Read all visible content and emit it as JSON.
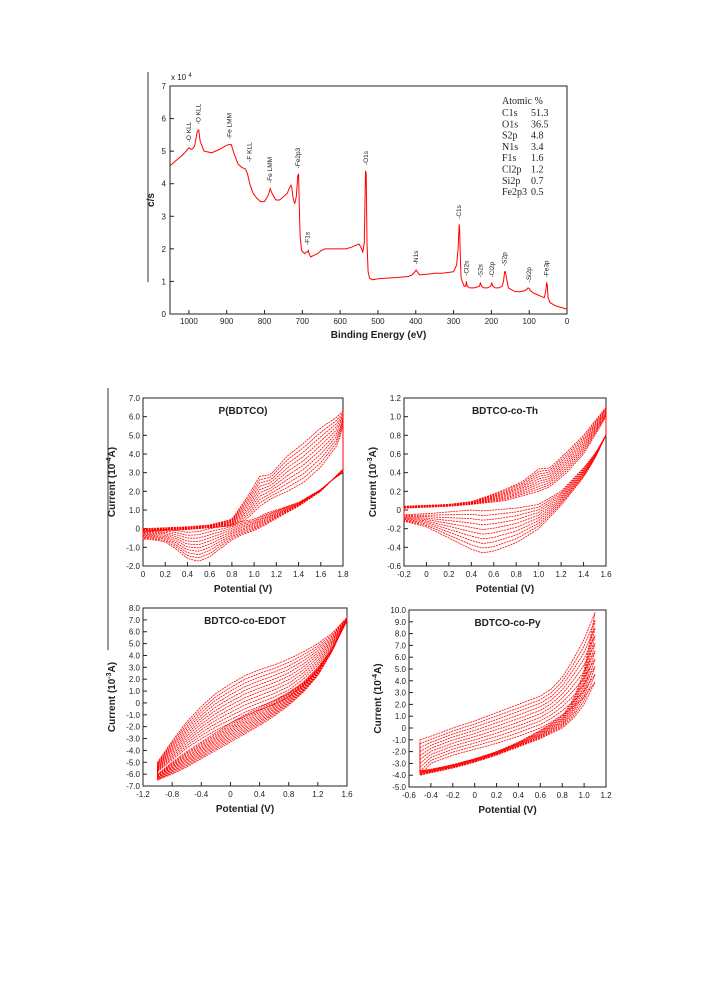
{
  "accent_color": "#ff0000",
  "chart_data": [
    {
      "id": "xps",
      "type": "line",
      "xlabel": "Binding Energy (eV)",
      "ylabel": "c/s",
      "y_multiplier": "x 10",
      "y_multiplier_exp": "4",
      "xlim": [
        1050,
        0
      ],
      "ylim": [
        0,
        7
      ],
      "x_ticks": [
        1000,
        900,
        800,
        700,
        600,
        500,
        400,
        300,
        200,
        100,
        0
      ],
      "y_ticks": [
        0,
        1,
        2,
        3,
        4,
        5,
        6,
        7
      ],
      "grid": false,
      "series": [
        {
          "x": [
            1050,
            1030,
            1015,
            1000,
            992,
            985,
            978,
            974,
            970,
            960,
            940,
            920,
            905,
            895,
            888,
            880,
            870,
            860,
            850,
            845,
            838,
            830,
            820,
            810,
            800,
            790,
            785,
            780,
            770,
            760,
            750,
            740,
            735,
            730,
            728,
            725,
            722,
            720,
            716,
            712,
            710,
            708,
            706,
            702,
            698,
            694,
            690,
            686,
            684,
            682,
            678,
            670,
            660,
            650,
            640,
            620,
            600,
            585,
            570,
            560,
            550,
            545,
            540,
            536,
            533,
            531,
            529,
            526,
            522,
            515,
            500,
            480,
            450,
            420,
            410,
            402,
            399,
            396,
            390,
            370,
            350,
            330,
            310,
            300,
            292,
            288,
            286,
            285,
            284,
            282,
            280,
            277,
            272,
            268,
            266,
            264,
            258,
            245,
            232,
            229,
            226,
            220,
            210,
            202,
            199,
            196,
            190,
            180,
            172,
            168,
            165,
            163,
            160,
            155,
            140,
            125,
            110,
            103,
            100,
            97,
            90,
            80,
            70,
            60,
            56,
            54,
            52,
            50,
            45,
            30,
            15,
            0
          ],
          "y": [
            4.55,
            4.75,
            4.9,
            5.1,
            5.05,
            5.15,
            5.6,
            5.65,
            5.3,
            5.0,
            4.95,
            5.05,
            5.15,
            5.2,
            5.2,
            4.9,
            4.6,
            4.5,
            4.45,
            4.3,
            3.95,
            3.7,
            3.55,
            3.45,
            3.45,
            3.65,
            3.85,
            3.7,
            3.5,
            3.5,
            3.6,
            3.7,
            3.85,
            3.95,
            3.9,
            3.6,
            3.45,
            3.4,
            3.6,
            4.25,
            4.3,
            3.3,
            2.4,
            1.95,
            1.9,
            1.85,
            1.9,
            1.9,
            1.95,
            1.85,
            1.75,
            1.8,
            1.85,
            1.95,
            2.0,
            2.0,
            2.0,
            2.0,
            2.05,
            2.1,
            2.15,
            2.05,
            1.9,
            2.2,
            4.4,
            4.3,
            2.2,
            1.3,
            1.1,
            1.05,
            1.08,
            1.1,
            1.12,
            1.15,
            1.2,
            1.3,
            1.35,
            1.3,
            1.2,
            1.22,
            1.25,
            1.25,
            1.28,
            1.3,
            1.5,
            2.0,
            2.55,
            2.75,
            2.6,
            1.7,
            1.1,
            1.0,
            0.85,
            0.85,
            1.0,
            0.85,
            0.8,
            0.8,
            0.85,
            0.95,
            0.85,
            0.8,
            0.8,
            0.85,
            0.95,
            0.85,
            0.8,
            0.8,
            0.85,
            1.0,
            1.3,
            1.3,
            1.1,
            0.8,
            0.7,
            0.68,
            0.72,
            0.8,
            0.78,
            0.72,
            0.65,
            0.6,
            0.55,
            0.5,
            0.7,
            0.95,
            0.9,
            0.5,
            0.35,
            0.25,
            0.2,
            0.15
          ]
        }
      ],
      "annotations": [
        {
          "label": "O KLL",
          "x": 1000,
          "y": 5.15
        },
        {
          "label": "O KLL",
          "x": 975,
          "y": 5.7
        },
        {
          "label": "Fe LMM",
          "x": 892,
          "y": 5.25
        },
        {
          "label": "F KLL",
          "x": 840,
          "y": 4.55
        },
        {
          "label": "Fe LMM",
          "x": 785,
          "y": 3.9
        },
        {
          "label": "Fe2p3",
          "x": 712,
          "y": 4.35
        },
        {
          "label": "F1s",
          "x": 686,
          "y": 2.0
        },
        {
          "label": "O1s",
          "x": 531,
          "y": 4.45
        },
        {
          "label": "N1s",
          "x": 399,
          "y": 1.4
        },
        {
          "label": "C1s",
          "x": 285,
          "y": 2.8
        },
        {
          "label": "Cl2s",
          "x": 266,
          "y": 1.05
        },
        {
          "label": "S2s",
          "x": 229,
          "y": 1.0
        },
        {
          "label": "Cl2p",
          "x": 199,
          "y": 1.0
        },
        {
          "label": "S2p",
          "x": 165,
          "y": 1.35
        },
        {
          "label": "Si2p",
          "x": 100,
          "y": 0.85
        },
        {
          "label": "Fe3p",
          "x": 54,
          "y": 1.0
        }
      ],
      "composition": {
        "title": "Atomic %",
        "rows": [
          {
            "element": "C1s",
            "value": "51.3"
          },
          {
            "element": "O1s",
            "value": "36.5"
          },
          {
            "element": "S2p",
            "value": "4.8"
          },
          {
            "element": "N1s",
            "value": "3.4"
          },
          {
            "element": "F1s",
            "value": "1.6"
          },
          {
            "element": "Cl2p",
            "value": "1.2"
          },
          {
            "element": "Si2p",
            "value": "0.7"
          },
          {
            "element": "Fe2p3",
            "value": "0.5"
          }
        ]
      }
    },
    {
      "id": "cv1",
      "type": "line",
      "title": "P(BDTCO)",
      "xlabel": "Potential (V)",
      "ylabel": "Current (10",
      "ylabel_exp": "-4",
      "ylabel_tail": "A)",
      "xlim": [
        0,
        1.8
      ],
      "ylim": [
        -2.0,
        7.0
      ],
      "x_ticks": [
        "0",
        "0.2",
        "0.4",
        "0.6",
        "0.8",
        "1.0",
        "1.2",
        "1.4",
        "1.6",
        "1.8"
      ],
      "x_tick_values": [
        0,
        0.2,
        0.4,
        0.6,
        0.8,
        1.0,
        1.2,
        1.4,
        1.6,
        1.8
      ],
      "y_ticks": [
        "-2.0",
        "-1.0",
        "0",
        "1.0",
        "2.0",
        "3.0",
        "4.0",
        "5.0",
        "6.0",
        "7.0"
      ],
      "y_tick_values": [
        -2,
        -1,
        0,
        1,
        2,
        3,
        4,
        5,
        6,
        7
      ],
      "grid": false,
      "cycles": 10,
      "anodic": {
        "x": [
          0,
          0.2,
          0.4,
          0.6,
          0.8,
          0.95,
          1.05,
          1.15,
          1.3,
          1.45,
          1.6,
          1.75,
          1.8
        ],
        "y_first": [
          -0.15,
          -0.1,
          -0.05,
          0.05,
          0.15,
          0.6,
          1.2,
          1.6,
          2.0,
          2.5,
          3.3,
          4.5,
          5.5
        ],
        "y_last": [
          0.0,
          0.05,
          0.1,
          0.2,
          0.5,
          1.8,
          2.8,
          2.9,
          3.9,
          4.6,
          5.4,
          6.0,
          6.3
        ]
      },
      "cathodic": {
        "x": [
          1.8,
          1.7,
          1.6,
          1.4,
          1.2,
          1.1,
          1.0,
          0.9,
          0.8,
          0.6,
          0.5,
          0.4,
          0.3,
          0.2,
          0.1,
          0
        ],
        "y_first": [
          3.0,
          2.6,
          2.1,
          1.4,
          1.0,
          0.8,
          0.5,
          0.4,
          0.2,
          0.0,
          -0.15,
          -0.2,
          -0.1,
          -0.05,
          -0.1,
          -0.15
        ],
        "y_last": [
          3.2,
          2.6,
          2.0,
          1.2,
          0.55,
          0.2,
          -0.1,
          -0.3,
          -0.6,
          -1.5,
          -1.75,
          -1.6,
          -1.1,
          -0.7,
          -0.6,
          -0.55
        ]
      }
    },
    {
      "id": "cv2",
      "type": "line",
      "title": "BDTCO-co-Th",
      "xlabel": "Potential (V)",
      "ylabel": "Current (10",
      "ylabel_exp": "-3",
      "ylabel_tail": "A)",
      "xlim": [
        -0.2,
        1.6
      ],
      "ylim": [
        -0.6,
        1.2
      ],
      "x_ticks": [
        "-0.2",
        "0",
        "0.2",
        "0.4",
        "0.6",
        "0.8",
        "1.0",
        "1.2",
        "1.4",
        "1.6"
      ],
      "x_tick_values": [
        -0.2,
        0,
        0.2,
        0.4,
        0.6,
        0.8,
        1.0,
        1.2,
        1.4,
        1.6
      ],
      "y_ticks": [
        "-0.6",
        "-0.4",
        "-0.2",
        "0",
        "0.2",
        "0.4",
        "0.6",
        "0.8",
        "1.0",
        "1.2"
      ],
      "y_tick_values": [
        -0.6,
        -0.4,
        -0.2,
        0,
        0.2,
        0.4,
        0.6,
        0.8,
        1.0,
        1.2
      ],
      "grid": false,
      "cycles": 10,
      "anodic": {
        "x": [
          -0.2,
          0,
          0.2,
          0.4,
          0.55,
          0.7,
          0.85,
          1.0,
          1.1,
          1.25,
          1.4,
          1.5,
          1.6
        ],
        "y_first": [
          0.02,
          0.03,
          0.04,
          0.06,
          0.08,
          0.1,
          0.15,
          0.2,
          0.25,
          0.4,
          0.6,
          0.8,
          1.0
        ],
        "y_last": [
          0.04,
          0.05,
          0.06,
          0.09,
          0.15,
          0.22,
          0.3,
          0.44,
          0.45,
          0.62,
          0.8,
          0.95,
          1.1
        ]
      },
      "cathodic": {
        "x": [
          1.6,
          1.5,
          1.4,
          1.2,
          1.0,
          0.8,
          0.6,
          0.5,
          0.4,
          0.2,
          0,
          -0.2
        ],
        "y_first": [
          0.8,
          0.6,
          0.45,
          0.2,
          0.06,
          0.02,
          0.0,
          -0.01,
          0.0,
          -0.02,
          -0.04,
          -0.05
        ],
        "y_last": [
          0.8,
          0.55,
          0.35,
          0.05,
          -0.2,
          -0.35,
          -0.44,
          -0.46,
          -0.42,
          -0.3,
          -0.18,
          -0.12
        ]
      }
    },
    {
      "id": "cv3",
      "type": "line",
      "title": "BDTCO-co-EDOT",
      "xlabel": "Potential (V)",
      "ylabel": "Current (10",
      "ylabel_exp": "-3",
      "ylabel_tail": "A)",
      "xlim": [
        -1.2,
        1.6
      ],
      "ylim": [
        -7.0,
        8.0
      ],
      "x_ticks": [
        "-1.2",
        "-0.8",
        "-0.4",
        "0",
        "0.4",
        "0.8",
        "1.2",
        "1.6"
      ],
      "x_tick_values": [
        -1.2,
        -0.8,
        -0.4,
        0,
        0.4,
        0.8,
        1.2,
        1.6
      ],
      "y_ticks": [
        "-7.0",
        "-6.0",
        "-5.0",
        "-4.0",
        "-3.0",
        "-2.0",
        "-1.0",
        "0",
        "1.0",
        "2.0",
        "3.0",
        "4.0",
        "5.0",
        "6.0",
        "7.0",
        "8.0"
      ],
      "y_tick_values": [
        -7,
        -6,
        -5,
        -4,
        -3,
        -2,
        -1,
        0,
        1,
        2,
        3,
        4,
        5,
        6,
        7,
        8
      ],
      "grid": false,
      "cycles": 12,
      "anodic": {
        "x": [
          -1.0,
          -0.8,
          -0.6,
          -0.4,
          -0.2,
          0,
          0.2,
          0.4,
          0.6,
          0.8,
          1.0,
          1.2,
          1.4,
          1.6
        ],
        "y_first": [
          -5.8,
          -4.8,
          -3.8,
          -3.0,
          -2.3,
          -1.7,
          -1.1,
          -0.6,
          -0.1,
          0.5,
          1.5,
          2.8,
          4.5,
          6.9
        ],
        "y_last": [
          -5.0,
          -3.2,
          -1.6,
          -0.3,
          0.8,
          1.6,
          2.3,
          2.8,
          3.2,
          3.7,
          4.3,
          5.0,
          5.9,
          7.2
        ]
      },
      "cathodic": {
        "x": [
          1.6,
          1.4,
          1.2,
          1.0,
          0.8,
          0.6,
          0.4,
          0.2,
          0,
          -0.2,
          -0.4,
          -0.6,
          -0.8,
          -1.0
        ],
        "y_first": [
          6.9,
          4.6,
          2.9,
          1.7,
          0.9,
          0.2,
          -0.4,
          -1.0,
          -1.7,
          -2.5,
          -3.3,
          -4.1,
          -5.0,
          -6.0
        ],
        "y_last": [
          7.1,
          4.4,
          2.3,
          0.9,
          -0.2,
          -1.1,
          -1.9,
          -2.6,
          -3.3,
          -4.0,
          -4.7,
          -5.4,
          -6.0,
          -6.5
        ]
      }
    },
    {
      "id": "cv4",
      "type": "line",
      "title": "BDTCO-co-Py",
      "xlabel": "Potential (V)",
      "ylabel": "Current (10",
      "ylabel_exp": "-4",
      "ylabel_tail": "A)",
      "xlim": [
        -0.6,
        1.2
      ],
      "ylim": [
        -5.0,
        10.0
      ],
      "x_ticks": [
        "-0.6",
        "-0.4",
        "-0.2",
        "0",
        "0.2",
        "0.4",
        "0.6",
        "0.8",
        "1.0",
        "1.2"
      ],
      "x_tick_values": [
        -0.6,
        -0.4,
        -0.2,
        0,
        0.2,
        0.4,
        0.6,
        0.8,
        1.0,
        1.2
      ],
      "y_ticks": [
        "-5.0",
        "-4.0",
        "-3.0",
        "-2.0",
        "-1.0",
        "0",
        "1.0",
        "2.0",
        "3.0",
        "4.0",
        "5.0",
        "6.0",
        "7.0",
        "8.0",
        "9.0",
        "10.0"
      ],
      "y_tick_values": [
        -5,
        -4,
        -3,
        -2,
        -1,
        0,
        1,
        2,
        3,
        4,
        5,
        6,
        7,
        8,
        9,
        10
      ],
      "grid": false,
      "cycles": 10,
      "anodic": {
        "x": [
          -0.5,
          -0.4,
          -0.2,
          0,
          0.2,
          0.4,
          0.6,
          0.7,
          0.8,
          0.9,
          1.0,
          1.1
        ],
        "y_first": [
          -4.0,
          -3.0,
          -2.3,
          -1.8,
          -1.3,
          -0.7,
          0.0,
          0.5,
          1.1,
          1.8,
          2.6,
          3.9
        ],
        "y_last": [
          -1.0,
          -0.7,
          0.0,
          0.6,
          1.3,
          2.0,
          2.7,
          3.3,
          4.3,
          5.8,
          7.5,
          9.8
        ]
      },
      "cathodic": {
        "x": [
          1.1,
          1.0,
          0.9,
          0.8,
          0.6,
          0.4,
          0.2,
          0,
          -0.2,
          -0.4,
          -0.5
        ],
        "y_first": [
          3.9,
          2.0,
          0.8,
          0.0,
          -0.9,
          -1.6,
          -2.3,
          -2.9,
          -3.4,
          -3.8,
          -4.0
        ],
        "y_last": [
          9.8,
          4.8,
          2.4,
          1.0,
          -0.2,
          -1.2,
          -2.0,
          -2.6,
          -3.1,
          -3.5,
          -3.6
        ]
      }
    }
  ]
}
